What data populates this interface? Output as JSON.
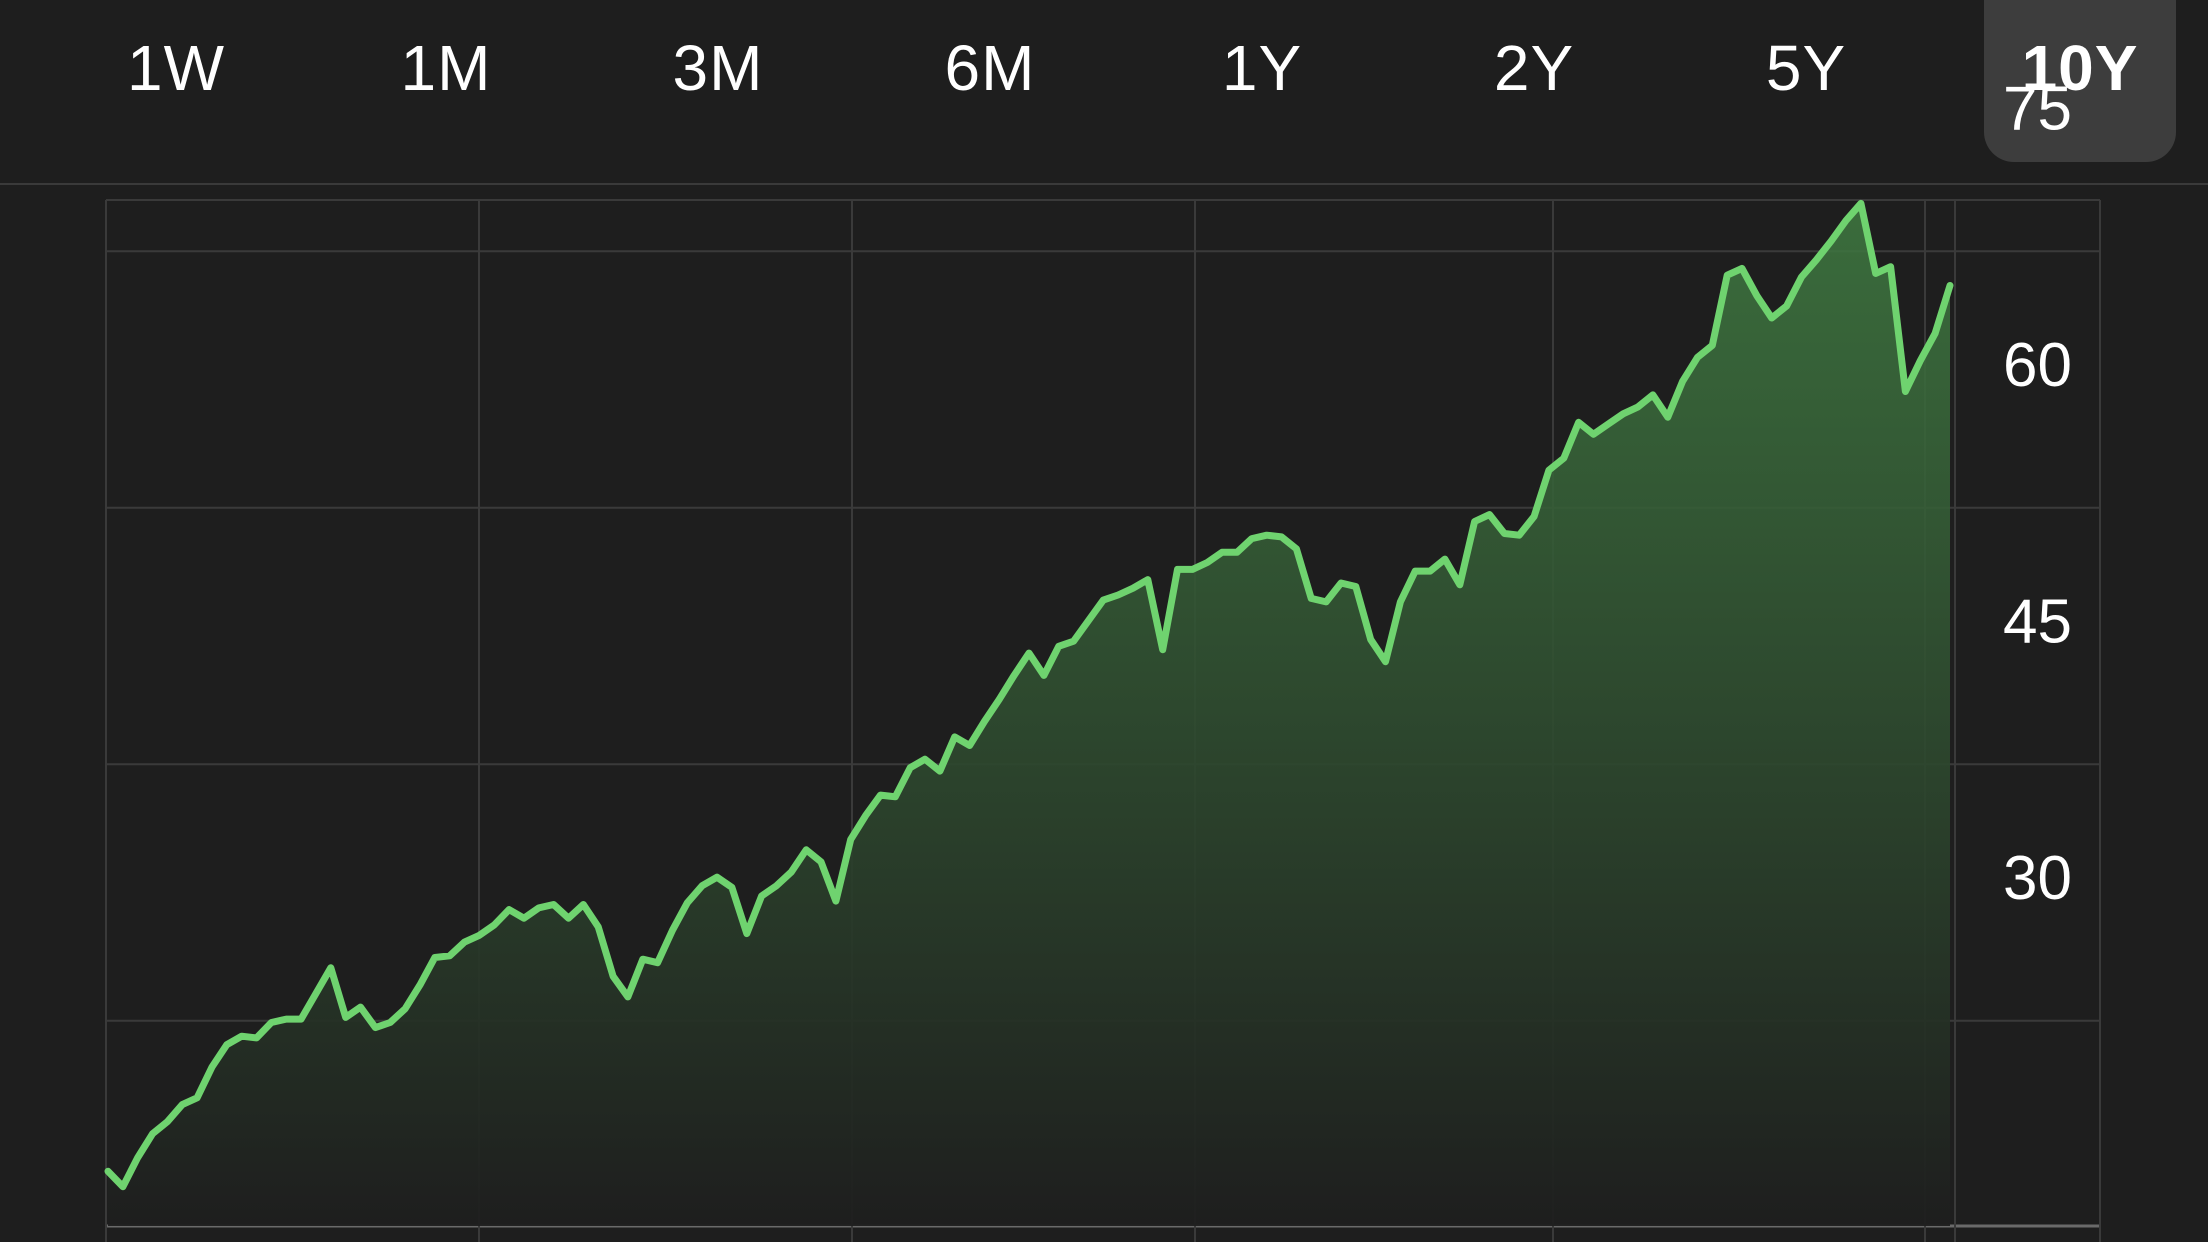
{
  "ranges": [
    {
      "label": "1W",
      "selected": false
    },
    {
      "label": "1M",
      "selected": false
    },
    {
      "label": "3M",
      "selected": false
    },
    {
      "label": "6M",
      "selected": false
    },
    {
      "label": "1Y",
      "selected": false
    },
    {
      "label": "2Y",
      "selected": false
    },
    {
      "label": "5Y",
      "selected": false
    },
    {
      "label": "10Y",
      "selected": true
    }
  ],
  "colors": {
    "background": "#1e1e1e",
    "line": "#6fd36f",
    "fill_top": "#3f7a41",
    "grid": "#3a3a3a",
    "selected_tab": "#3d3d3d"
  },
  "chart_data": {
    "type": "area",
    "title": "",
    "xlabel": "",
    "ylabel": "",
    "y_ticks": [
      75,
      60,
      45,
      30
    ],
    "ylim": [
      18,
      78
    ],
    "grid": true,
    "axis_side": "right",
    "values": [
      21.2,
      20.3,
      22.0,
      23.4,
      24.1,
      25.1,
      25.5,
      27.3,
      28.6,
      29.1,
      29.0,
      29.9,
      30.1,
      30.1,
      31.6,
      33.1,
      30.2,
      30.8,
      29.6,
      29.9,
      30.7,
      32.1,
      33.7,
      33.8,
      34.6,
      35.0,
      35.6,
      36.5,
      36.0,
      36.6,
      36.8,
      36.0,
      36.8,
      35.5,
      32.6,
      31.4,
      33.6,
      33.4,
      35.3,
      36.9,
      37.9,
      38.4,
      37.8,
      35.1,
      37.3,
      37.9,
      38.7,
      40.0,
      39.3,
      37.0,
      40.6,
      42.0,
      43.2,
      43.1,
      44.8,
      45.3,
      44.6,
      46.6,
      46.1,
      47.5,
      48.8,
      50.2,
      51.5,
      50.2,
      51.9,
      52.2,
      53.4,
      54.6,
      54.9,
      55.3,
      55.8,
      51.7,
      56.4,
      56.4,
      56.8,
      57.4,
      57.4,
      58.2,
      58.4,
      58.3,
      57.6,
      54.7,
      54.5,
      55.6,
      55.4,
      52.3,
      51.0,
      54.5,
      56.3,
      56.3,
      57.0,
      55.5,
      59.2,
      59.6,
      58.5,
      58.4,
      59.5,
      62.2,
      62.9,
      65.0,
      64.3,
      64.9,
      65.5,
      65.9,
      66.6,
      65.3,
      67.4,
      68.8,
      69.5,
      73.6,
      74.0,
      72.4,
      71.1,
      71.8,
      73.5,
      74.5,
      75.6,
      76.8,
      77.8,
      73.7,
      74.1,
      66.8,
      68.6,
      70.2,
      73.0
    ]
  }
}
